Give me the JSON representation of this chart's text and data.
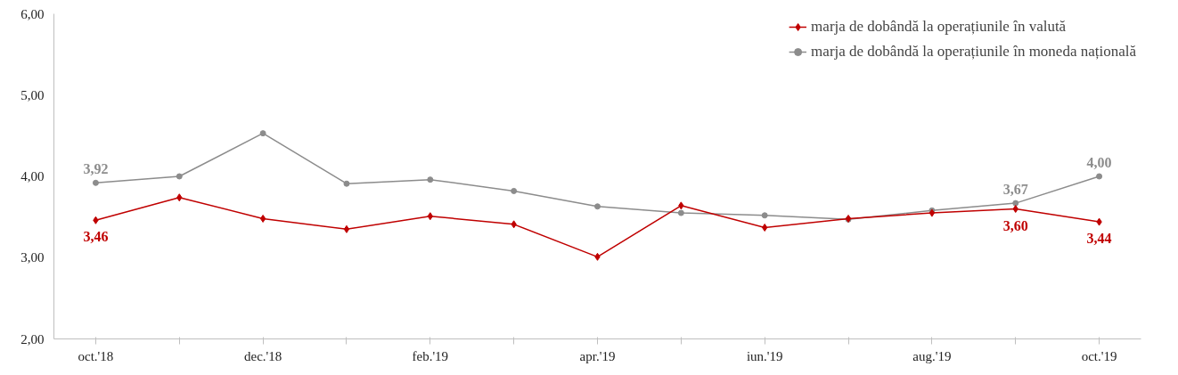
{
  "chart_data": {
    "type": "line",
    "categories": [
      "oct.'18",
      null,
      "dec.'18",
      null,
      "feb.'19",
      null,
      "apr.'19",
      null,
      "iun.'19",
      null,
      "aug.'19",
      null,
      "oct.'19"
    ],
    "series": [
      {
        "name": "marja de dobândă la operațiunile în valută",
        "color": "#c00000",
        "marker": "diamond",
        "values": [
          3.46,
          3.74,
          3.48,
          3.35,
          3.51,
          3.41,
          3.01,
          3.64,
          3.37,
          3.48,
          3.55,
          3.6,
          3.44
        ],
        "value_labels": [
          "3,46",
          null,
          null,
          null,
          null,
          null,
          null,
          null,
          null,
          null,
          null,
          "3,60",
          "3,44"
        ]
      },
      {
        "name": "marja de dobândă la operațiunile în moneda națională",
        "color": "#8c8c8c",
        "marker": "circle",
        "values": [
          3.92,
          4.0,
          4.53,
          3.91,
          3.96,
          3.82,
          3.63,
          3.55,
          3.52,
          3.47,
          3.58,
          3.67,
          4.0
        ],
        "value_labels": [
          "3,92",
          null,
          null,
          null,
          null,
          null,
          null,
          null,
          null,
          null,
          null,
          "3,67",
          "4,00"
        ]
      }
    ],
    "ylim": [
      2,
      6
    ],
    "yticks": [
      {
        "value": 2,
        "label": "2,00"
      },
      {
        "value": 3,
        "label": "3,00"
      },
      {
        "value": 4,
        "label": "4,00"
      },
      {
        "value": 5,
        "label": "5,00"
      },
      {
        "value": 6,
        "label": "6,00"
      }
    ],
    "grid": false,
    "legend": "top right",
    "line_style": "solid"
  }
}
